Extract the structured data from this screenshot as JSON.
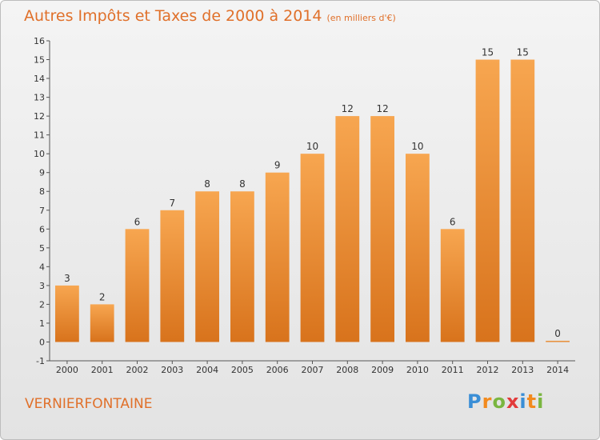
{
  "title": "Autres Impôts et Taxes de 2000 à 2014",
  "unit": "(en milliers d'€)",
  "place": "VERNIERFONTAINE",
  "logo": "Proxiti",
  "logo_letters": [
    {
      "ch": "P",
      "color": "#3a8ed6"
    },
    {
      "ch": "r",
      "color": "#f28a1e"
    },
    {
      "ch": "o",
      "color": "#7ab640"
    },
    {
      "ch": "x",
      "color": "#e23b3b"
    },
    {
      "ch": "i",
      "color": "#3a8ed6"
    },
    {
      "ch": "t",
      "color": "#f28a1e"
    },
    {
      "ch": "i",
      "color": "#7ab640"
    }
  ],
  "colors": {
    "bar_top": "#f7a650",
    "bar_bottom": "#d8731c",
    "accent": "#e0702a"
  },
  "chart_data": {
    "type": "bar",
    "categories": [
      "2000",
      "2001",
      "2002",
      "2003",
      "2004",
      "2005",
      "2006",
      "2007",
      "2008",
      "2009",
      "2010",
      "2011",
      "2012",
      "2013",
      "2014"
    ],
    "values": [
      3,
      2,
      6,
      7,
      8,
      8,
      9,
      10,
      12,
      12,
      10,
      6,
      15,
      15,
      0
    ],
    "ylim": [
      -1,
      16
    ],
    "yticks": [
      -1,
      0,
      1,
      2,
      3,
      4,
      5,
      6,
      7,
      8,
      9,
      10,
      11,
      12,
      13,
      14,
      15,
      16
    ],
    "grid": false,
    "legend": "none"
  }
}
